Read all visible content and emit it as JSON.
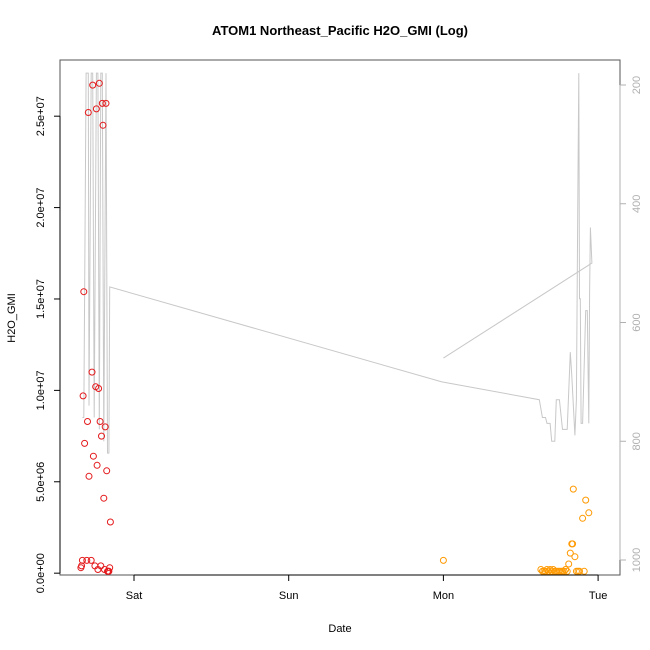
{
  "chart_data": {
    "type": "scatter",
    "title": "ATOM1 Northeast_Pacific H2O_GMI (Log)",
    "xlabel": "Date",
    "ylabel": "H2O_GMI",
    "xlim": [
      -1.4,
      2.05
    ],
    "ylim": [
      -100000.0,
      27800000.0
    ],
    "x_ticks": [
      {
        "value": 0,
        "label": "Sat"
      },
      {
        "value": 1,
        "label": "Sun"
      },
      {
        "value": 2,
        "label": "Mon"
      },
      {
        "value": 3,
        "label": "Tue"
      }
    ],
    "y_ticks": [
      {
        "value": 0,
        "label": "0.0e+00"
      },
      {
        "value": 5000000,
        "label": "5.0e+06"
      },
      {
        "value": 10000000,
        "label": "1.0e+07"
      },
      {
        "value": 15000000,
        "label": "1.5e+07"
      },
      {
        "value": 20000000,
        "label": "2.0e+07"
      },
      {
        "value": 25000000,
        "label": "2.5e+07"
      }
    ],
    "y2_ticks": [
      {
        "value": 200,
        "label": "200"
      },
      {
        "value": 400,
        "label": "400"
      },
      {
        "value": 600,
        "label": "600"
      },
      {
        "value": 800,
        "label": "800"
      },
      {
        "value": 1000,
        "label": "1000"
      }
    ],
    "y2lim": [
      1015,
      180
    ],
    "series": [
      {
        "color": "#e41a1c",
        "points": [
          [
            -0.36,
            300000
          ],
          [
            -0.355,
            400000
          ],
          [
            -0.35,
            700000
          ],
          [
            -0.345,
            9700000
          ],
          [
            -0.34,
            15400000
          ],
          [
            -0.335,
            7100000
          ],
          [
            -0.32,
            700000
          ],
          [
            -0.315,
            8300000
          ],
          [
            -0.31,
            25200000
          ],
          [
            -0.305,
            5300000
          ],
          [
            -0.29,
            700000
          ],
          [
            -0.285,
            11000000
          ],
          [
            -0.28,
            26700000
          ],
          [
            -0.275,
            6400000
          ],
          [
            -0.265,
            400000
          ],
          [
            -0.26,
            10200000
          ],
          [
            -0.255,
            25400000
          ],
          [
            -0.25,
            5900000
          ],
          [
            -0.245,
            200000
          ],
          [
            -0.24,
            10100000
          ],
          [
            -0.235,
            26800000
          ],
          [
            -0.23,
            8300000
          ],
          [
            -0.225,
            400000
          ],
          [
            -0.22,
            7500000
          ],
          [
            -0.215,
            25700000
          ],
          [
            -0.21,
            24500000
          ],
          [
            -0.205,
            4100000
          ],
          [
            -0.2,
            200000
          ],
          [
            -0.195,
            8000000
          ],
          [
            -0.19,
            25700000
          ],
          [
            -0.185,
            5600000
          ],
          [
            -0.18,
            100000
          ],
          [
            -0.175,
            100000
          ],
          [
            -0.17,
            100000
          ],
          [
            -0.165,
            300000
          ],
          [
            -0.16,
            2800000
          ]
        ]
      },
      {
        "color": "#ff9900",
        "points": [
          [
            2.0,
            700000
          ],
          [
            2.63,
            200000
          ],
          [
            2.64,
            100000
          ],
          [
            2.65,
            100000
          ],
          [
            2.66,
            100000
          ],
          [
            2.67,
            200000
          ],
          [
            2.68,
            100000
          ],
          [
            2.69,
            200000
          ],
          [
            2.7,
            100000
          ],
          [
            2.71,
            200000
          ],
          [
            2.72,
            100000
          ],
          [
            2.73,
            100000
          ],
          [
            2.74,
            100000
          ],
          [
            2.75,
            100000
          ],
          [
            2.76,
            100000
          ],
          [
            2.77,
            100000
          ],
          [
            2.78,
            100000
          ],
          [
            2.79,
            200000
          ],
          [
            2.8,
            100000
          ],
          [
            2.81,
            500000
          ],
          [
            2.82,
            1100000
          ],
          [
            2.83,
            1600000
          ],
          [
            2.835,
            1600000
          ],
          [
            2.84,
            4600000
          ],
          [
            2.85,
            900000
          ],
          [
            2.86,
            100000
          ],
          [
            2.87,
            100000
          ],
          [
            2.88,
            100000
          ],
          [
            2.9,
            3000000
          ],
          [
            2.91,
            100000
          ],
          [
            2.92,
            4000000
          ],
          [
            2.94,
            3300000
          ]
        ]
      }
    ],
    "gray_pressure_line": [
      [
        -0.35,
        760
      ],
      [
        -0.34,
        760
      ],
      [
        -0.325,
        180
      ],
      [
        -0.31,
        180
      ],
      [
        -0.305,
        740
      ],
      [
        -0.29,
        180
      ],
      [
        -0.28,
        180
      ],
      [
        -0.27,
        760
      ],
      [
        -0.255,
        180
      ],
      [
        -0.245,
        180
      ],
      [
        -0.235,
        780
      ],
      [
        -0.225,
        180
      ],
      [
        -0.215,
        180
      ],
      [
        -0.205,
        800
      ],
      [
        -0.19,
        180
      ],
      [
        -0.18,
        820
      ],
      [
        -0.17,
        820
      ],
      [
        -0.165,
        540
      ],
      [
        1.99,
        700
      ],
      [
        2.62,
        730
      ],
      [
        2.64,
        760
      ],
      [
        2.66,
        760
      ],
      [
        2.67,
        770
      ],
      [
        2.68,
        770
      ],
      [
        2.69,
        770
      ],
      [
        2.7,
        800
      ],
      [
        2.71,
        800
      ],
      [
        2.72,
        800
      ],
      [
        2.73,
        730
      ],
      [
        2.75,
        730
      ],
      [
        2.77,
        780
      ],
      [
        2.8,
        780
      ],
      [
        2.82,
        650
      ],
      [
        2.83,
        690
      ],
      [
        2.85,
        790
      ],
      [
        2.86,
        730
      ],
      [
        2.87,
        350
      ],
      [
        2.875,
        180
      ],
      [
        2.88,
        560
      ],
      [
        2.885,
        560
      ],
      [
        2.89,
        770
      ],
      [
        2.9,
        770
      ],
      [
        2.92,
        580
      ],
      [
        2.93,
        580
      ],
      [
        2.94,
        770
      ],
      [
        2.945,
        550
      ],
      [
        2.95,
        440
      ],
      [
        2.96,
        500
      ],
      [
        2.0,
        660
      ]
    ]
  }
}
